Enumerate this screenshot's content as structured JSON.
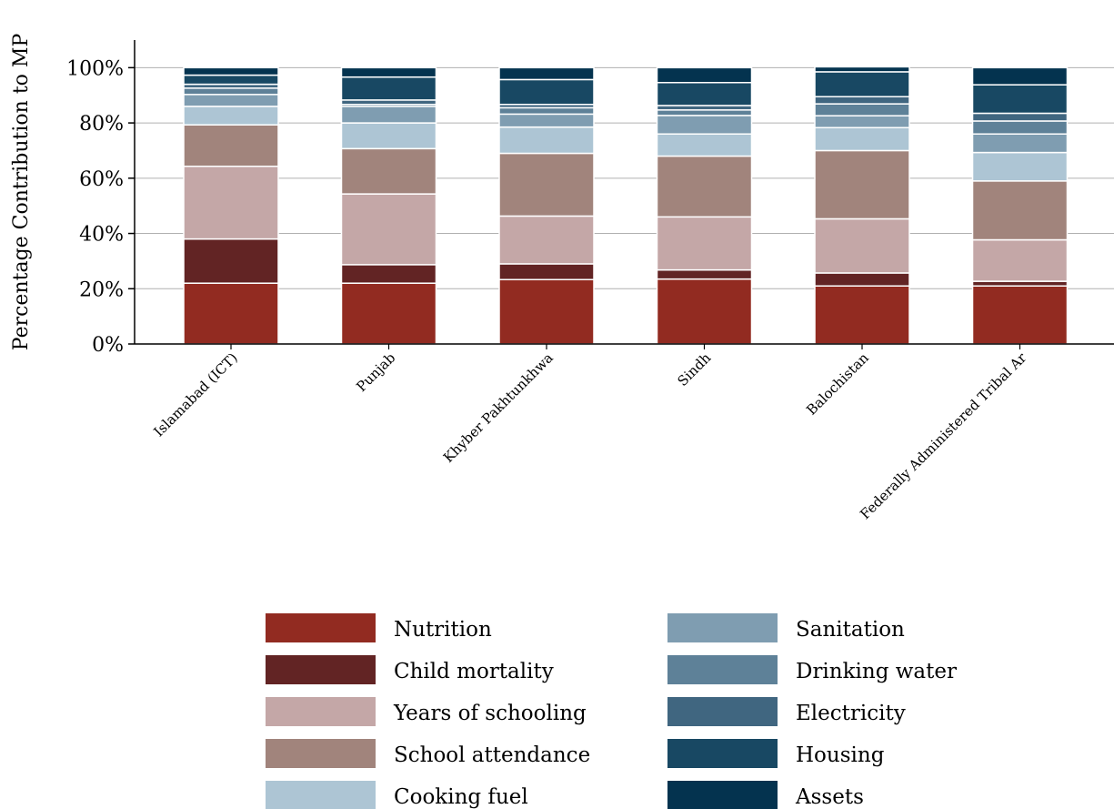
{
  "chart_data": {
    "type": "bar",
    "stacked": true,
    "title": "",
    "xlabel": "",
    "ylabel": "Percentage Contribution to MP",
    "ylim": [
      0,
      110
    ],
    "yticks": [
      0,
      20,
      40,
      60,
      80,
      100
    ],
    "ytick_labels": [
      "0%",
      "20%",
      "40%",
      "60%",
      "80%",
      "100%"
    ],
    "grid": "horizontal",
    "legend_position": "bottom",
    "categories": [
      "Islamabad (ICT)",
      "Punjab",
      "Khyber Pakhtunkhwa",
      "Sindh",
      "Balochistan",
      "Federally Administered Tribal Ar"
    ],
    "series": [
      {
        "name": "Nutrition",
        "color": "#922b21",
        "values": [
          22.0,
          22.0,
          23.3,
          23.5,
          21.0,
          21.0
        ]
      },
      {
        "name": "Child mortality",
        "color": "#622424",
        "values": [
          16.0,
          6.7,
          5.7,
          3.3,
          4.7,
          1.7
        ]
      },
      {
        "name": "Years of schooling",
        "color": "#c4a7a7",
        "values": [
          26.3,
          25.6,
          17.3,
          19.2,
          19.6,
          15.0
        ]
      },
      {
        "name": "School attendance",
        "color": "#a1847c",
        "values": [
          15.0,
          16.4,
          22.7,
          22.0,
          24.7,
          21.3
        ]
      },
      {
        "name": "Cooking fuel",
        "color": "#adc5d4",
        "values": [
          6.7,
          9.3,
          9.5,
          8.0,
          8.3,
          10.3
        ]
      },
      {
        "name": "Sanitation",
        "color": "#7f9db1",
        "values": [
          4.3,
          6.0,
          4.7,
          6.7,
          4.3,
          6.7
        ]
      },
      {
        "name": "Drinking water",
        "color": "#5e8198",
        "values": [
          2.3,
          0.7,
          2.3,
          2.0,
          4.3,
          4.7
        ]
      },
      {
        "name": "Electricity",
        "color": "#406680",
        "values": [
          1.4,
          1.6,
          1.2,
          1.6,
          2.6,
          2.8
        ]
      },
      {
        "name": "Housing",
        "color": "#184863",
        "values": [
          3.3,
          8.3,
          9.0,
          8.3,
          9.0,
          10.3
        ]
      },
      {
        "name": "Assets",
        "color": "#04334f",
        "values": [
          2.7,
          3.4,
          4.3,
          5.4,
          1.8,
          6.2
        ]
      }
    ]
  }
}
